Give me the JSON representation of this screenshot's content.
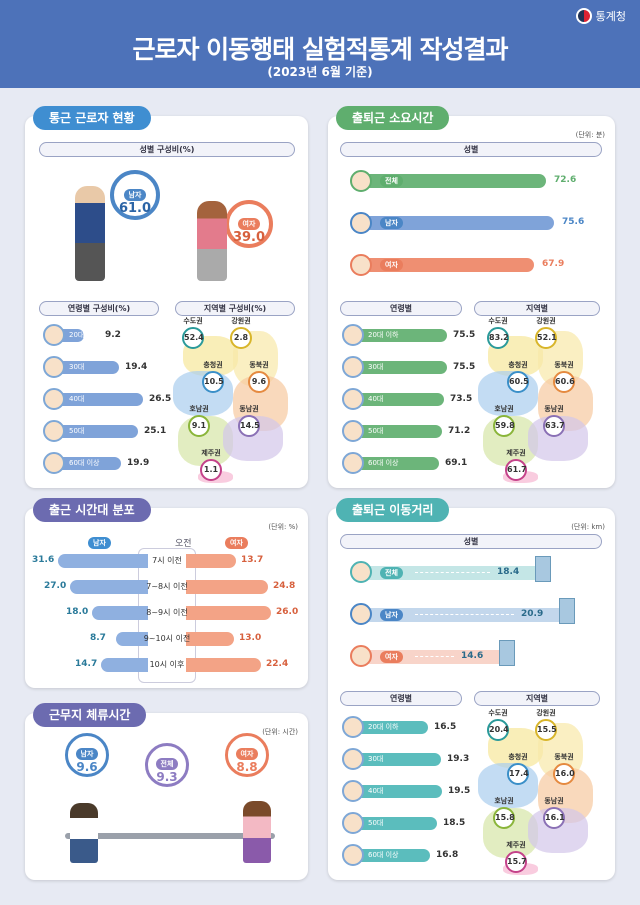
{
  "header": {
    "title": "근로자 이동행태 실험적통계 작성결과",
    "subtitle": "(2023년 6월 기준)",
    "agency": "통계청"
  },
  "commuters": {
    "tab": "통근 근로자 현황",
    "gender_pill": "성별 구성비(%)",
    "male_label": "남자",
    "male_value": "61.0",
    "female_label": "여자",
    "female_value": "39.0",
    "age_pill": "연령별 구성비(%)",
    "region_pill": "지역별 구성비(%)"
  },
  "commute_time": {
    "tab": "출퇴근 소요시간",
    "unit": "(단위: 분)",
    "gender_pill": "성별",
    "age_pill": "연령별",
    "region_pill": "지역별"
  },
  "start_time": {
    "tab": "출근 시간대 분포",
    "unit": "(단위: %)",
    "male": "남자",
    "female": "여자",
    "am": "오전"
  },
  "stay_time": {
    "tab": "근무지 체류시간",
    "unit": "(단위: 시간)",
    "items": [
      {
        "label": "남자",
        "value": "9.6",
        "color": "#4b86c6"
      },
      {
        "label": "전체",
        "value": "9.3",
        "color": "#8d7cc2"
      },
      {
        "label": "여자",
        "value": "8.8",
        "color": "#ea7d5d"
      }
    ]
  },
  "distance": {
    "tab": "출퇴근 이동거리",
    "unit": "(단위: km)",
    "gender_pill": "성별",
    "age_pill": "연령별",
    "region_pill": "지역별"
  },
  "colors": {
    "blue": "#4d72b9",
    "green": "#5fae6e",
    "purple": "#6c6bb0",
    "teal": "#4fb3b3",
    "male": "#7fa3d9",
    "female": "#ef8f72"
  },
  "chart_data": [
    {
      "id": "age_share",
      "type": "bar",
      "title": "연령별 구성비(%)",
      "categories": [
        "20대 이하",
        "30대",
        "40대",
        "50대",
        "60대 이상"
      ],
      "values": [
        9.2,
        19.4,
        26.5,
        25.1,
        19.9
      ]
    },
    {
      "id": "region_share",
      "type": "table",
      "title": "지역별 구성비(%)",
      "categories": [
        "수도권",
        "강원권",
        "충청권",
        "동북권",
        "호남권",
        "동남권",
        "제주권"
      ],
      "values": [
        52.4,
        2.8,
        10.5,
        9.6,
        9.1,
        14.5,
        1.1
      ]
    },
    {
      "id": "time_gender",
      "type": "bar",
      "title": "성별",
      "categories": [
        "전체",
        "남자",
        "여자"
      ],
      "values": [
        72.6,
        75.6,
        67.9
      ]
    },
    {
      "id": "time_age",
      "type": "bar",
      "title": "연령별",
      "categories": [
        "20대 이하",
        "30대",
        "40대",
        "50대",
        "60대 이상"
      ],
      "values": [
        75.5,
        75.5,
        73.5,
        71.2,
        69.1
      ]
    },
    {
      "id": "time_region",
      "type": "table",
      "title": "지역별",
      "categories": [
        "수도권",
        "강원권",
        "충청권",
        "동북권",
        "호남권",
        "동남권",
        "제주권"
      ],
      "values": [
        83.2,
        52.1,
        60.5,
        60.6,
        59.8,
        63.7,
        61.7
      ]
    },
    {
      "id": "start_dist",
      "type": "bar",
      "title": "출근 시간대 분포",
      "categories": [
        "7시 이전",
        "7~8시 이전",
        "8~9시 이전",
        "9~10시 이전",
        "10시 이후"
      ],
      "series": [
        {
          "name": "남자",
          "values": [
            31.6,
            27.0,
            18.0,
            8.7,
            14.7
          ]
        },
        {
          "name": "여자",
          "values": [
            13.7,
            24.8,
            26.0,
            13.0,
            22.4
          ]
        }
      ]
    },
    {
      "id": "dist_gender",
      "type": "bar",
      "title": "성별",
      "categories": [
        "전체",
        "남자",
        "여자"
      ],
      "values": [
        18.4,
        20.9,
        14.6
      ]
    },
    {
      "id": "dist_age",
      "type": "bar",
      "title": "연령별",
      "categories": [
        "20대 이하",
        "30대",
        "40대",
        "50대",
        "60대 이상"
      ],
      "values": [
        16.5,
        19.3,
        19.5,
        18.5,
        16.8
      ]
    },
    {
      "id": "dist_region",
      "type": "table",
      "title": "지역별",
      "categories": [
        "수도권",
        "강원권",
        "충청권",
        "동북권",
        "호남권",
        "동남권",
        "제주권"
      ],
      "values": [
        20.4,
        15.5,
        17.4,
        16.0,
        15.8,
        16.1,
        15.7
      ]
    }
  ]
}
